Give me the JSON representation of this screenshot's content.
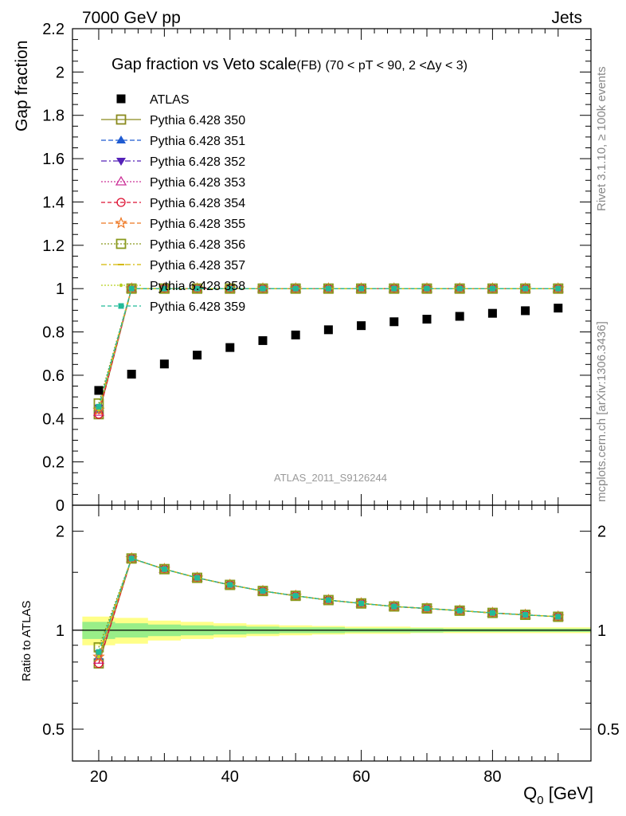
{
  "header": {
    "left": "7000 GeV pp",
    "right": "Jets"
  },
  "side": {
    "rivet": "Rivet 3.1.10, ≥ 100k events",
    "mcplots": "mcplots.cern.ch [arXiv:1306.3436]"
  },
  "chart_data": [
    {
      "type": "scatter",
      "title": "Gap fraction vs Veto scale",
      "subtitle_main": "(FB)",
      "subtitle_cuts": "(70 < pT <  90, 2 <Δy < 3)",
      "ylabel": "Gap fraction",
      "xlabel": "",
      "watermark": "ATLAS_2011_S9126244",
      "xlim": [
        16,
        95
      ],
      "ylim": [
        0,
        2.2
      ],
      "yticks": [
        0,
        0.2,
        0.4,
        0.6,
        0.8,
        1,
        1.2,
        1.4,
        1.6,
        1.8,
        2,
        2.2
      ],
      "ytick_labels": [
        "0",
        "0.2",
        "0.4",
        "0.6",
        "0.8",
        "1",
        "1.2",
        "1.4",
        "1.6",
        "1.8",
        "2",
        "2.2"
      ],
      "x": [
        20,
        25,
        30,
        35,
        40,
        45,
        50,
        55,
        60,
        65,
        70,
        75,
        80,
        85,
        90
      ],
      "data": {
        "name": "ATLAS",
        "values": [
          0.53,
          0.605,
          0.652,
          0.693,
          0.728,
          0.76,
          0.786,
          0.81,
          0.829,
          0.847,
          0.859,
          0.872,
          0.886,
          0.898,
          0.91
        ]
      },
      "series": [
        {
          "name": "Pythia 6.428 350",
          "color": "#8a8a1e",
          "marker": "open-square",
          "dash": "",
          "values": [
            0.42,
            1,
            1,
            1,
            1,
            1,
            1,
            1,
            1,
            1,
            1,
            1,
            1,
            1,
            1
          ]
        },
        {
          "name": "Pythia 6.428 351",
          "color": "#1f5bd1",
          "marker": "triangle-up",
          "dash": "6,3",
          "values": [
            0.44,
            1,
            1,
            1,
            1,
            1,
            1,
            1,
            1,
            1,
            1,
            1,
            1,
            1,
            1
          ]
        },
        {
          "name": "Pythia 6.428 352",
          "color": "#5522b8",
          "marker": "triangle-down",
          "dash": "7,3,2,3",
          "values": [
            0.45,
            1,
            1,
            1,
            1,
            1,
            1,
            1,
            1,
            1,
            1,
            1,
            1,
            1,
            1
          ]
        },
        {
          "name": "Pythia 6.428 353",
          "color": "#cc3399",
          "marker": "open-triangle",
          "dash": "2,2",
          "values": [
            0.43,
            1,
            1,
            1,
            1,
            1,
            1,
            1,
            1,
            1,
            1,
            1,
            1,
            1,
            1
          ]
        },
        {
          "name": "Pythia 6.428 354",
          "color": "#dd1133",
          "marker": "open-circle",
          "dash": "5,3",
          "values": [
            0.42,
            1,
            1,
            1,
            1,
            1,
            1,
            1,
            1,
            1,
            1,
            1,
            1,
            1,
            1
          ]
        },
        {
          "name": "Pythia 6.428 355",
          "color": "#ee7722",
          "marker": "open-star",
          "dash": "6,3",
          "values": [
            0.44,
            1,
            1,
            1,
            1,
            1,
            1,
            1,
            1,
            1,
            1,
            1,
            1,
            1,
            1
          ]
        },
        {
          "name": "Pythia 6.428 356",
          "color": "#8a9a1e",
          "marker": "open-square",
          "dash": "2,2",
          "values": [
            0.47,
            1,
            1,
            1,
            1,
            1,
            1,
            1,
            1,
            1,
            1,
            1,
            1,
            1,
            1
          ]
        },
        {
          "name": "Pythia 6.428 357",
          "color": "#d4b800",
          "marker": "dash",
          "dash": "7,3,2,3",
          "values": [
            0.45,
            1,
            1,
            1,
            1,
            1,
            1,
            1,
            1,
            1,
            1,
            1,
            1,
            1,
            1
          ]
        },
        {
          "name": "Pythia 6.428 358",
          "color": "#b8d020",
          "marker": "dot",
          "dash": "2,2",
          "values": [
            0.44,
            1,
            1,
            1,
            1,
            1,
            1,
            1,
            1,
            1,
            1,
            1,
            1,
            1,
            1
          ]
        },
        {
          "name": "Pythia 6.428 359",
          "color": "#22bb99",
          "marker": "filled-square",
          "dash": "5,3",
          "values": [
            0.455,
            1,
            1,
            1,
            1,
            1,
            1,
            1,
            1,
            1,
            1,
            1,
            1,
            1,
            1
          ]
        }
      ]
    },
    {
      "type": "scatter",
      "title": "",
      "ylabel": "Ratio to ATLAS",
      "xlabel": "Q",
      "xlabel_sub": "0",
      "xlabel_unit": " [GeV]",
      "scale": "log",
      "xlim": [
        16,
        95
      ],
      "ylim": [
        0.4,
        2.4
      ],
      "xticks": [
        20,
        40,
        60,
        80
      ],
      "xtick_labels": [
        "20",
        "40",
        "60",
        "80"
      ],
      "yticks": [
        0.5,
        1,
        2
      ],
      "ytick_labels": [
        "0.5",
        "1",
        "2"
      ],
      "band_inner": [
        0.06,
        0.05,
        0.04,
        0.035,
        0.03,
        0.025,
        0.02,
        0.02,
        0.015,
        0.015,
        0.015,
        0.012,
        0.012,
        0.012,
        0.012
      ],
      "band_outer": [
        0.1,
        0.09,
        0.07,
        0.06,
        0.05,
        0.04,
        0.035,
        0.03,
        0.025,
        0.025,
        0.02,
        0.02,
        0.02,
        0.02,
        0.02
      ]
    }
  ]
}
